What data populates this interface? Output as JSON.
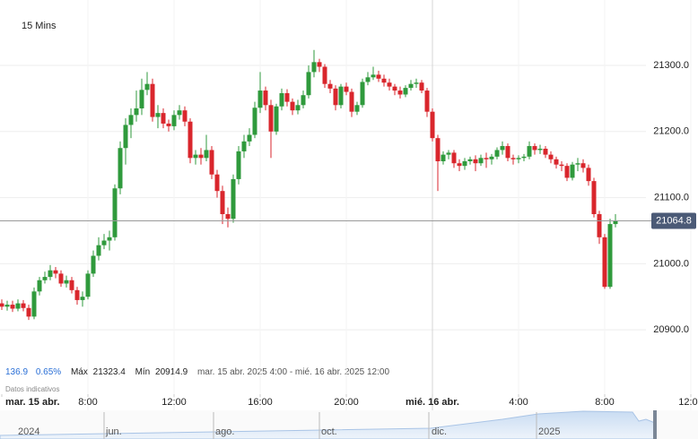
{
  "chart_data": {
    "type": "candlestick",
    "title": "15 Mins",
    "x": [
      4,
      4.25,
      4.5,
      4.75,
      5,
      5.25,
      5.5,
      5.75,
      6,
      6.25,
      6.5,
      6.75,
      7,
      7.25,
      7.5,
      7.75,
      8,
      8.25,
      8.5,
      8.75,
      9,
      9.25,
      9.5,
      9.75,
      10,
      10.25,
      10.5,
      10.75,
      11,
      11.25,
      11.5,
      11.75,
      12,
      12.25,
      12.5,
      12.75,
      13,
      13.25,
      13.5,
      13.75,
      14,
      14.25,
      14.5,
      14.75,
      15,
      15.25,
      15.5,
      15.75,
      16,
      16.25,
      16.5,
      16.75,
      17,
      17.25,
      17.5,
      17.75,
      18,
      18.25,
      18.5,
      18.75,
      19,
      19.25,
      19.5,
      19.75,
      20,
      20.25,
      20.5,
      20.75,
      21,
      21.25,
      21.5,
      21.75,
      22,
      22.25,
      22.5,
      22.75,
      23,
      23.25,
      23.5,
      23.75,
      24,
      24.25,
      24.5,
      24.75,
      25,
      25.25,
      25.5,
      25.75,
      26,
      26.25,
      26.5,
      26.75,
      27,
      27.25,
      27.5,
      27.75,
      28,
      28.25,
      28.5,
      28.75,
      29,
      29.25,
      29.5,
      29.75,
      30,
      30.25,
      30.5,
      30.75,
      31,
      31.25,
      31.5,
      31.75,
      32,
      32.25,
      32.5
    ],
    "open": [
      20940,
      20935,
      20938,
      20932,
      20940,
      20933,
      20920,
      20958,
      20975,
      20980,
      20990,
      20985,
      20970,
      20975,
      20960,
      20945,
      20950,
      20985,
      21012,
      21028,
      21035,
      21040,
      21114,
      21175,
      21210,
      21225,
      21235,
      21263,
      21272,
      21222,
      21228,
      21212,
      21208,
      21225,
      21232,
      21215,
      21160,
      21165,
      21160,
      21172,
      21135,
      21110,
      21075,
      21068,
      21128,
      21170,
      21185,
      21195,
      21236,
      21262,
      21240,
      21200,
      21238,
      21258,
      21245,
      21232,
      21240,
      21255,
      21290,
      21305,
      21298,
      21272,
      21265,
      21240,
      21268,
      21260,
      21230,
      21240,
      21275,
      21282,
      21286,
      21280,
      21274,
      21268,
      21262,
      21256,
      21266,
      21272,
      21274,
      21262,
      21230,
      21190,
      21155,
      21165,
      21168,
      21152,
      21148,
      21155,
      21158,
      21152,
      21160,
      21158,
      21162,
      21172,
      21178,
      21160,
      21158,
      21160,
      21162,
      21178,
      21172,
      21174,
      21165,
      21158,
      21150,
      21148,
      21130,
      21150,
      21152,
      21145,
      21125,
      21075,
      21040,
      20965,
      21060
    ],
    "high": [
      20946,
      20944,
      20944,
      20946,
      20945,
      20938,
      20964,
      20980,
      20988,
      20998,
      20995,
      20990,
      20982,
      20980,
      20965,
      20958,
      20990,
      21020,
      21040,
      21045,
      21050,
      21120,
      21185,
      21220,
      21235,
      21262,
      21280,
      21290,
      21280,
      21240,
      21235,
      21218,
      21232,
      21240,
      21238,
      21220,
      21172,
      21175,
      21195,
      21178,
      21142,
      21118,
      21085,
      21135,
      21178,
      21195,
      21205,
      21245,
      21290,
      21268,
      21248,
      21242,
      21265,
      21264,
      21250,
      21248,
      21262,
      21300,
      21323.4,
      21310,
      21302,
      21278,
      21270,
      21272,
      21274,
      21265,
      21245,
      21280,
      21290,
      21298,
      21292,
      21286,
      21280,
      21272,
      21268,
      21270,
      21278,
      21280,
      21278,
      21266,
      21235,
      21195,
      21170,
      21172,
      21172,
      21158,
      21160,
      21162,
      21164,
      21165,
      21168,
      21166,
      21176,
      21185,
      21182,
      21165,
      21164,
      21166,
      21185,
      21182,
      21180,
      21178,
      21170,
      21162,
      21155,
      21152,
      21154,
      21160,
      21158,
      21150,
      21130,
      21080,
      21045,
      21068,
      21075
    ],
    "low": [
      20930,
      20929,
      20927,
      20928,
      20928,
      20914.9,
      20916,
      20952,
      20970,
      20975,
      20978,
      20965,
      20964,
      20955,
      20938,
      20935,
      20946,
      20980,
      21005,
      21022,
      21020,
      21035,
      21105,
      21150,
      21190,
      21215,
      21225,
      21255,
      21215,
      21205,
      21205,
      21200,
      21202,
      21218,
      21208,
      21152,
      21150,
      21150,
      21155,
      21128,
      21100,
      21060,
      21055,
      21062,
      21120,
      21160,
      21178,
      21190,
      21228,
      21232,
      21160,
      21195,
      21232,
      21238,
      21225,
      21226,
      21235,
      21250,
      21282,
      21290,
      21266,
      21258,
      21232,
      21235,
      21255,
      21222,
      21225,
      21236,
      21270,
      21278,
      21275,
      21268,
      21262,
      21255,
      21250,
      21252,
      21262,
      21266,
      21258,
      21222,
      21185,
      21110,
      21150,
      21158,
      21145,
      21140,
      21142,
      21150,
      21140,
      21148,
      21145,
      21150,
      21158,
      21165,
      21155,
      21150,
      21152,
      21155,
      21158,
      21165,
      21166,
      21160,
      21152,
      21144,
      21140,
      21125,
      21126,
      21140,
      21138,
      21118,
      21070,
      21030,
      20962,
      20962,
      21055
    ],
    "close": [
      20935,
      20938,
      20932,
      20940,
      20933,
      20920,
      20958,
      20975,
      20980,
      20990,
      20985,
      20970,
      20975,
      20960,
      20945,
      20950,
      20985,
      21012,
      21028,
      21035,
      21040,
      21114,
      21175,
      21210,
      21225,
      21235,
      21263,
      21272,
      21222,
      21228,
      21212,
      21208,
      21225,
      21232,
      21215,
      21160,
      21165,
      21160,
      21172,
      21135,
      21110,
      21075,
      21068,
      21128,
      21170,
      21185,
      21195,
      21236,
      21262,
      21240,
      21200,
      21238,
      21258,
      21245,
      21232,
      21240,
      21255,
      21290,
      21305,
      21298,
      21272,
      21265,
      21240,
      21268,
      21260,
      21230,
      21240,
      21275,
      21282,
      21286,
      21280,
      21274,
      21268,
      21262,
      21256,
      21266,
      21272,
      21274,
      21262,
      21230,
      21190,
      21155,
      21165,
      21168,
      21152,
      21148,
      21155,
      21158,
      21152,
      21160,
      21158,
      21162,
      21172,
      21178,
      21160,
      21158,
      21160,
      21162,
      21178,
      21172,
      21174,
      21165,
      21158,
      21150,
      21148,
      21130,
      21150,
      21152,
      21145,
      21125,
      21075,
      21040,
      20965,
      21060,
      21064.8
    ],
    "xlim": [
      3.9167,
      36.3333
    ],
    "ylim": [
      20850,
      21399
    ],
    "yticks": [
      {
        "value": 20900,
        "label": "20900.0"
      },
      {
        "value": 21000,
        "label": "21000.0"
      },
      {
        "value": 21100,
        "label": "21100.0"
      },
      {
        "value": 21200,
        "label": "21200.0"
      },
      {
        "value": 21300,
        "label": "21300.0"
      }
    ],
    "xticks": [
      {
        "value": 4,
        "label": "mar. 15 abr."
      },
      {
        "value": 8,
        "label": "8:00"
      },
      {
        "value": 12,
        "label": "12:00"
      },
      {
        "value": 16,
        "label": "16:00"
      },
      {
        "value": 20,
        "label": "20:00"
      },
      {
        "value": 24,
        "label": "mié. 16 abr."
      },
      {
        "value": 28,
        "label": "4:00"
      },
      {
        "value": 32,
        "label": "8:00"
      },
      {
        "value": 36,
        "label": "12:00"
      }
    ],
    "up_color": "#2f9a3c",
    "down_color": "#d9262c",
    "grid": true
  },
  "stats": {
    "change": 136.9,
    "change_pct": "0.65%",
    "high_label": "Máx",
    "high": 21323.4,
    "low_label": "Mín",
    "low": 20914.9,
    "range": "mar. 15 abr. 2025 4:00 - mié. 16 abr. 2025 12:00"
  },
  "note": "Datos indicativos",
  "navigator": {
    "labels": [
      "2024",
      "jun.",
      "ago.",
      "oct.",
      "dic.",
      "2025"
    ]
  }
}
